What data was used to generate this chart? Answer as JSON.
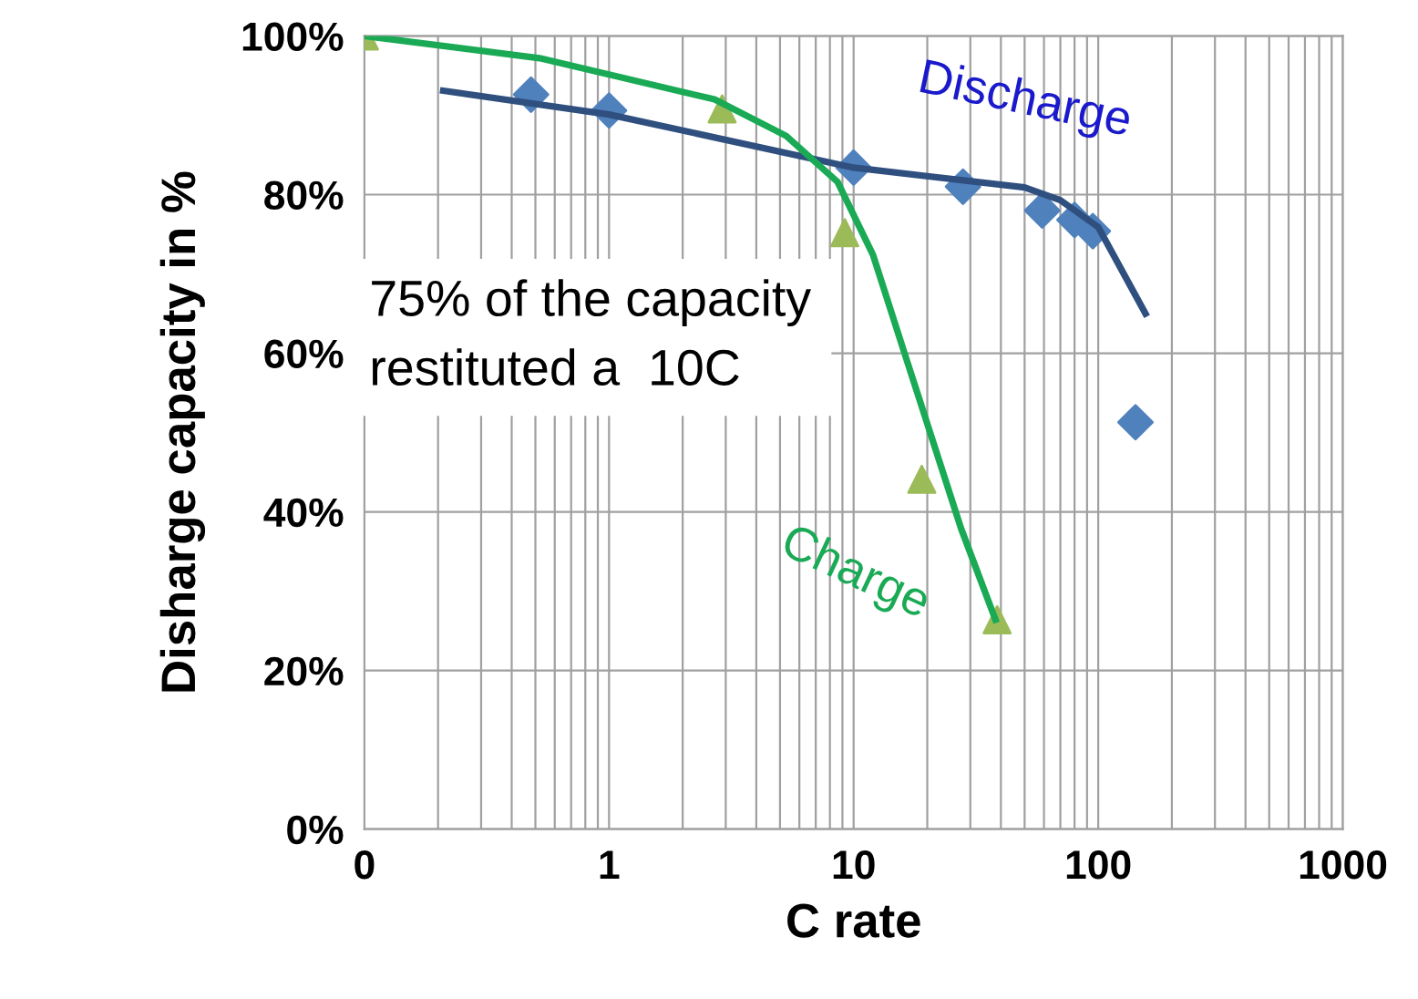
{
  "chart_data": {
    "type": "scatter",
    "xlabel": "C rate",
    "ylabel": "Disharge capacity in %",
    "log": "x",
    "grid": true,
    "legend": false,
    "xlim": [
      0.1,
      1000
    ],
    "xticks": [
      {
        "value": 0.1,
        "label": "0"
      },
      1,
      10,
      100,
      1000
    ],
    "ylim": [
      0,
      100
    ],
    "yticks": [
      {
        "value": 0,
        "label": "0%"
      },
      {
        "value": 20,
        "label": "20%"
      },
      {
        "value": 40,
        "label": "40%"
      },
      {
        "value": 60,
        "label": "60%"
      },
      {
        "value": 80,
        "label": "80%"
      },
      {
        "value": 100,
        "label": "100%"
      }
    ],
    "annotations": [
      "75% of the capacity\nrestituted a  10C"
    ],
    "series": [
      {
        "marker": "diamond",
        "color": "#4f81bd",
        "x": [
          0.48,
          1.0,
          10,
          28,
          59,
          80,
          95,
          142
        ],
        "values": [
          92.6,
          90.6,
          83.4,
          81,
          78,
          76.8,
          75.4,
          51.3
        ]
      },
      {
        "type": "line",
        "name": "Discharge",
        "color": "#2f4f7f",
        "marker": "none",
        "line_style": "solid",
        "x": [
          0.21,
          1.0,
          10,
          50,
          70,
          100,
          156
        ],
        "values": [
          93.1,
          90.1,
          83.4,
          80.9,
          79.3,
          75.9,
          65
        ]
      },
      {
        "marker": "triangle",
        "color": "#9bbb59",
        "x": [
          0.1,
          2.9,
          9.2,
          19,
          38.6
        ],
        "values": [
          100,
          90.8,
          75.2,
          44.1,
          26.4
        ]
      },
      {
        "type": "line",
        "name": "Charge",
        "color": "#1aaa55",
        "marker": "none",
        "line_style": "solid",
        "x": [
          0.1,
          0.52,
          2.7,
          5.3,
          8.6,
          12,
          16.7,
          27.5,
          38
        ],
        "values": [
          100,
          97.2,
          92,
          87.4,
          81.6,
          72.4,
          58.6,
          37.9,
          26.4
        ]
      }
    ]
  }
}
